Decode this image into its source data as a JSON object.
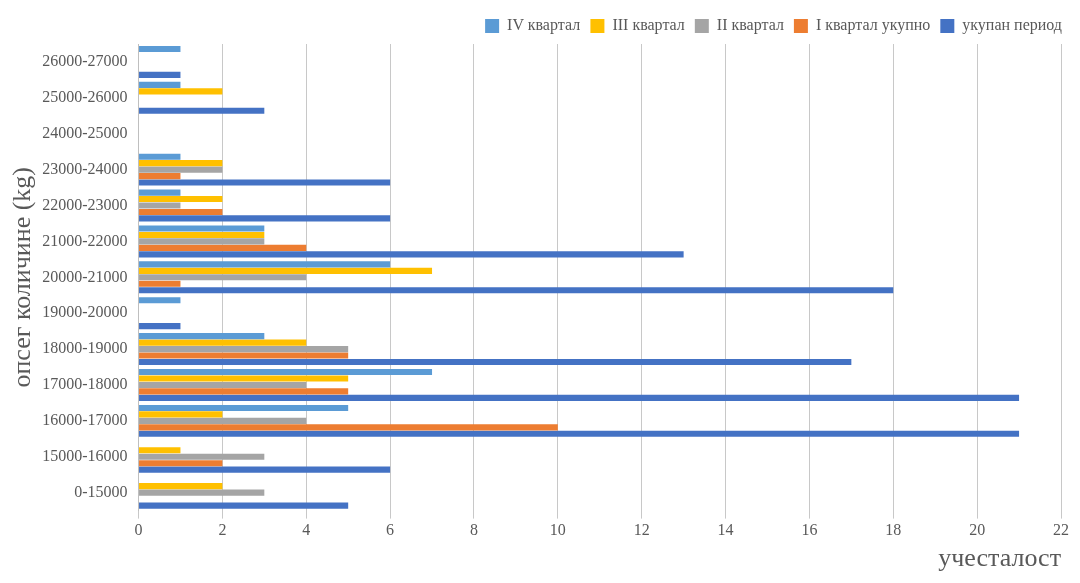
{
  "chart_data": {
    "type": "bar",
    "orientation": "horizontal",
    "xlabel": "учесталост",
    "ylabel": "опсег количине (kg)",
    "categories": [
      "26000-27000",
      "25000-26000",
      "24000-25000",
      "23000-24000",
      "22000-23000",
      "21000-22000",
      "20000-21000",
      "19000-20000",
      "18000-19000",
      "17000-18000",
      "16000-17000",
      "15000-16000",
      "0-15000"
    ],
    "series": [
      {
        "name": "IV квартал",
        "color": "#5b9bd5",
        "values": [
          1,
          1,
          0,
          1,
          1,
          3,
          6,
          1,
          3,
          7,
          5,
          0,
          0
        ]
      },
      {
        "name": "III квартал",
        "color": "#ffc000",
        "values": [
          0,
          2,
          0,
          2,
          2,
          3,
          7,
          0,
          4,
          5,
          2,
          1,
          2
        ]
      },
      {
        "name": "II квартал",
        "color": "#a5a5a5",
        "values": [
          0,
          0,
          0,
          2,
          1,
          3,
          4,
          0,
          5,
          4,
          4,
          3,
          3
        ]
      },
      {
        "name": "I квартал укупно",
        "color": "#ed7d31",
        "values": [
          0,
          0,
          0,
          1,
          2,
          4,
          1,
          0,
          5,
          5,
          10,
          2,
          0
        ]
      },
      {
        "name": "укупан период",
        "color": "#4472c4",
        "values": [
          1,
          3,
          0,
          6,
          6,
          13,
          18,
          1,
          17,
          21,
          21,
          6,
          5
        ]
      }
    ],
    "xlim": [
      0,
      22
    ],
    "xticks": [
      0,
      2,
      4,
      6,
      8,
      10,
      12,
      14,
      16,
      18,
      20,
      22
    ],
    "grid": "x",
    "legend": "top right"
  }
}
